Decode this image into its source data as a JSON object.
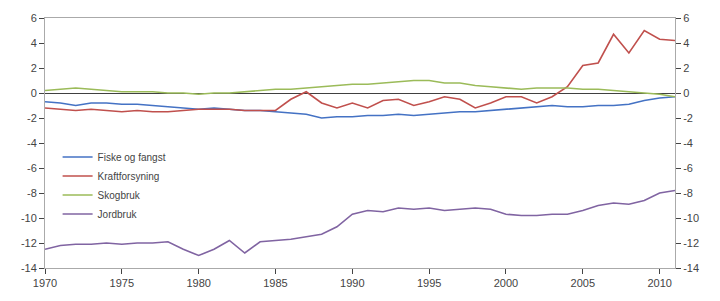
{
  "chart_data": {
    "type": "line",
    "x": [
      1970,
      1971,
      1972,
      1973,
      1974,
      1975,
      1976,
      1977,
      1978,
      1979,
      1980,
      1981,
      1982,
      1983,
      1984,
      1985,
      1986,
      1987,
      1988,
      1989,
      1990,
      1991,
      1992,
      1993,
      1994,
      1995,
      1996,
      1997,
      1998,
      1999,
      2000,
      2001,
      2002,
      2003,
      2004,
      2005,
      2006,
      2007,
      2008,
      2009,
      2010,
      2011
    ],
    "series": [
      {
        "name": "Fiske og fangst",
        "color": "#4472C4",
        "values": [
          -0.7,
          -0.8,
          -1.0,
          -0.8,
          -0.8,
          -0.9,
          -0.9,
          -1.0,
          -1.1,
          -1.2,
          -1.3,
          -1.2,
          -1.3,
          -1.4,
          -1.4,
          -1.5,
          -1.6,
          -1.7,
          -2.0,
          -1.9,
          -1.9,
          -1.8,
          -1.8,
          -1.7,
          -1.8,
          -1.7,
          -1.6,
          -1.5,
          -1.5,
          -1.4,
          -1.3,
          -1.2,
          -1.1,
          -1.0,
          -1.1,
          -1.1,
          -1.0,
          -1.0,
          -0.9,
          -0.6,
          -0.4,
          -0.3
        ]
      },
      {
        "name": "Kraftforsyning",
        "color": "#C0504D",
        "values": [
          -1.2,
          -1.3,
          -1.4,
          -1.3,
          -1.4,
          -1.5,
          -1.4,
          -1.5,
          -1.5,
          -1.4,
          -1.3,
          -1.3,
          -1.3,
          -1.4,
          -1.4,
          -1.4,
          -0.5,
          0.1,
          -0.8,
          -1.2,
          -0.8,
          -1.2,
          -0.6,
          -0.5,
          -1.0,
          -0.7,
          -0.3,
          -0.5,
          -1.2,
          -0.8,
          -0.3,
          -0.3,
          -0.8,
          -0.3,
          0.5,
          2.2,
          2.4,
          4.7,
          3.2,
          5.0,
          4.3,
          4.2
        ]
      },
      {
        "name": "Skogbruk",
        "color": "#9BBB59",
        "values": [
          0.2,
          0.3,
          0.4,
          0.3,
          0.2,
          0.1,
          0.1,
          0.1,
          0.0,
          0.0,
          -0.1,
          0.0,
          0.0,
          0.1,
          0.2,
          0.3,
          0.3,
          0.4,
          0.5,
          0.6,
          0.7,
          0.7,
          0.8,
          0.9,
          1.0,
          1.0,
          0.8,
          0.8,
          0.6,
          0.5,
          0.4,
          0.3,
          0.4,
          0.4,
          0.4,
          0.3,
          0.3,
          0.2,
          0.1,
          0.0,
          -0.1,
          -0.3
        ]
      },
      {
        "name": "Jordbruk",
        "color": "#8064A2",
        "values": [
          -12.5,
          -12.2,
          -12.1,
          -12.1,
          -12.0,
          -12.1,
          -12.0,
          -12.0,
          -11.9,
          -12.5,
          -13.0,
          -12.5,
          -11.8,
          -12.8,
          -11.9,
          -11.8,
          -11.7,
          -11.5,
          -11.3,
          -10.7,
          -9.7,
          -9.4,
          -9.5,
          -9.2,
          -9.3,
          -9.2,
          -9.4,
          -9.3,
          -9.2,
          -9.3,
          -9.7,
          -9.8,
          -9.8,
          -9.7,
          -9.7,
          -9.4,
          -9.0,
          -8.8,
          -8.9,
          -8.6,
          -8.0,
          -7.8
        ]
      }
    ],
    "xlim": [
      1970,
      2011
    ],
    "xticks": [
      1970,
      1975,
      1980,
      1985,
      1990,
      1995,
      2000,
      2005,
      2010
    ],
    "ylim": [
      -14,
      6
    ],
    "yticks": [
      -14,
      -12,
      -10,
      -8,
      -6,
      -4,
      -2,
      0,
      2,
      4,
      6
    ],
    "y2lim": [
      -14,
      6
    ],
    "y2ticks": [
      -14,
      -12,
      -10,
      -8,
      -6,
      -4,
      -2,
      0,
      2,
      4,
      6
    ],
    "grid": false,
    "legend": "center left"
  }
}
